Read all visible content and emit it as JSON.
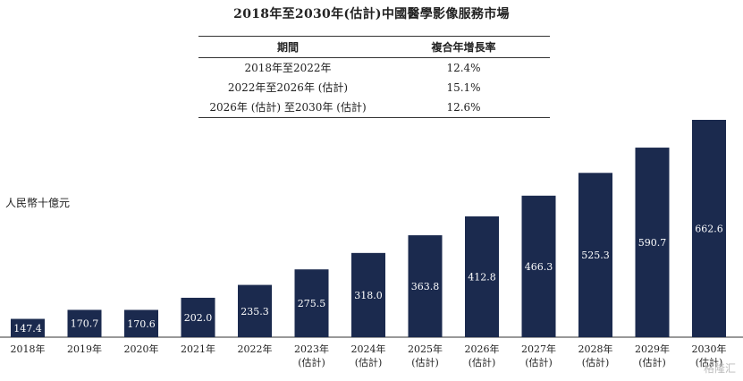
{
  "title": "2018年至2030年(估計)中國醫學影像服務市場",
  "cagr_table": {
    "headers": [
      "期間",
      "複合年增長率"
    ],
    "rows": [
      [
        "2018年至2022年",
        "12.4%"
      ],
      [
        "2022年至2026年 (估計)",
        "15.1%"
      ],
      [
        "2026年 (估計) 至2030年 (估計)",
        "12.6%"
      ]
    ]
  },
  "unit_label": "人民幣十億元",
  "watermark": "格隆汇",
  "colors": {
    "bar": "#1b2a4e",
    "label": "#ffffff",
    "axis": "#333333"
  },
  "chart_data": {
    "type": "bar",
    "title": "2018年至2030年(估計)中國醫學影像服務市場",
    "ylabel": "人民幣十億元",
    "xlabel": "",
    "categories": [
      [
        "2018年"
      ],
      [
        "2019年"
      ],
      [
        "2020年"
      ],
      [
        "2021年"
      ],
      [
        "2022年"
      ],
      [
        "2023年",
        "(估計)"
      ],
      [
        "2024年",
        "(估計)"
      ],
      [
        "2025年",
        "(估計)"
      ],
      [
        "2026年",
        "(估計)"
      ],
      [
        "2027年",
        "(估計)"
      ],
      [
        "2028年",
        "(估計)"
      ],
      [
        "2029年",
        "(估計)"
      ],
      [
        "2030年",
        "(估計)"
      ]
    ],
    "values": [
      147.4,
      170.7,
      170.6,
      202.0,
      235.3,
      275.5,
      318.0,
      363.8,
      412.8,
      466.3,
      525.3,
      590.7,
      662.6
    ],
    "value_labels": [
      "147.4",
      "170.7",
      "170.6",
      "202.0",
      "235.3",
      "275.5",
      "318.0",
      "363.8",
      "412.8",
      "466.3",
      "525.3",
      "590.7",
      "662.6"
    ],
    "ylim": [
      100,
      662.6
    ],
    "grid": false,
    "legend": "none"
  }
}
